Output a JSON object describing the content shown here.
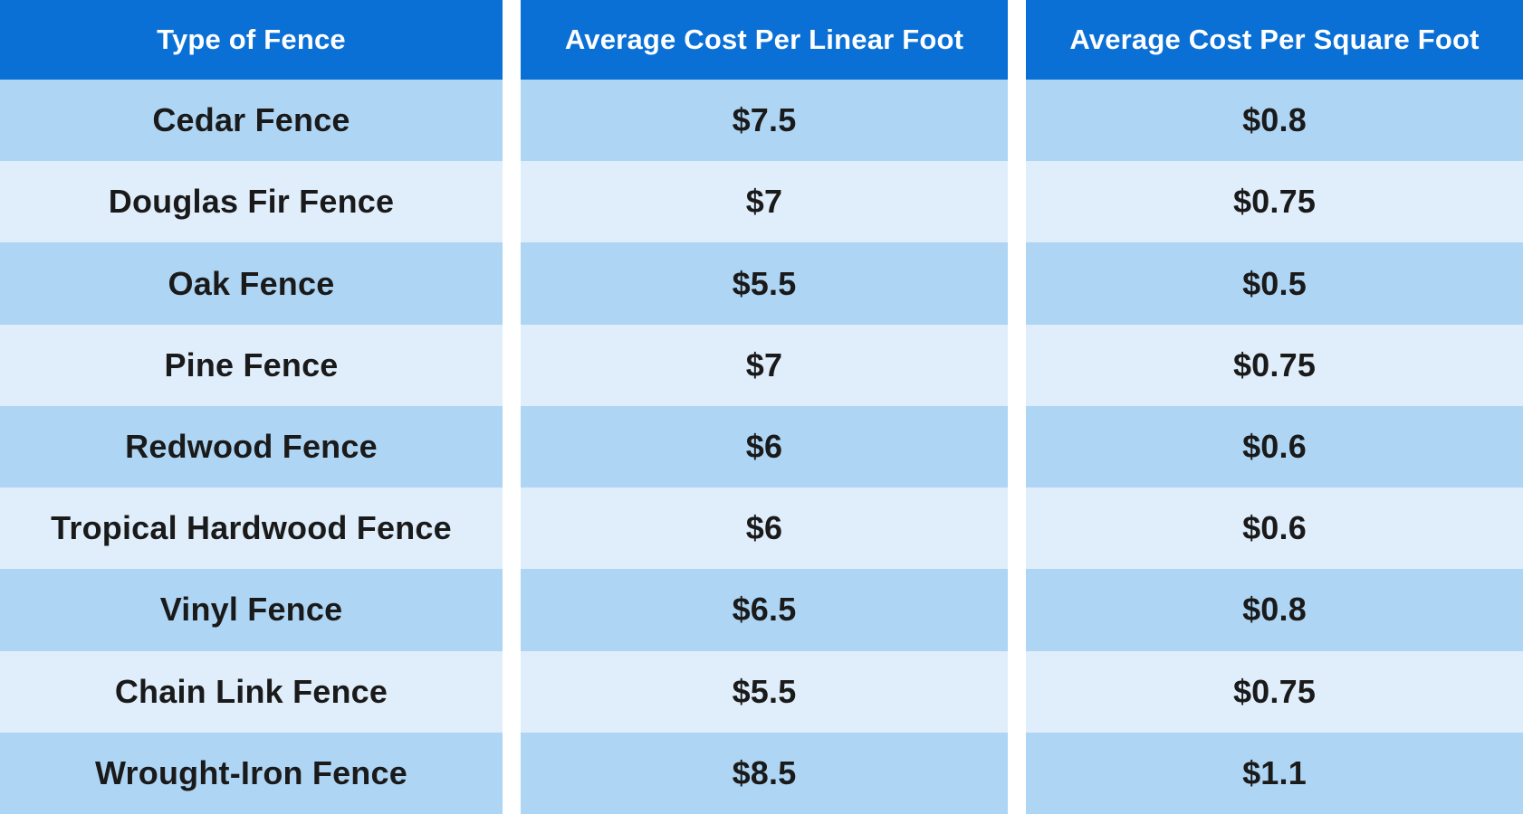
{
  "chart_data": {
    "type": "table",
    "columns": [
      "Type of Fence",
      "Average Cost Per Linear Foot",
      "Average Cost Per Square Foot"
    ],
    "rows": [
      [
        "Cedar Fence",
        "$7.5",
        "$0.8"
      ],
      [
        "Douglas Fir Fence",
        "$7",
        "$0.75"
      ],
      [
        "Oak Fence",
        "$5.5",
        "$0.5"
      ],
      [
        "Pine Fence",
        "$7",
        "$0.75"
      ],
      [
        "Redwood Fence",
        "$6",
        "$0.6"
      ],
      [
        "Tropical Hardwood Fence",
        "$6",
        "$0.6"
      ],
      [
        "Vinyl Fence",
        "$6.5",
        "$0.8"
      ],
      [
        "Chain Link Fence",
        "$5.5",
        "$0.75"
      ],
      [
        "Wrought-Iron Fence",
        "$8.5",
        "$1.1"
      ]
    ],
    "series": [
      {
        "name": "Average Cost Per Linear Foot",
        "values": [
          7.5,
          7,
          5.5,
          7,
          6,
          6,
          6.5,
          5.5,
          8.5
        ]
      },
      {
        "name": "Average Cost Per Square Foot",
        "values": [
          0.8,
          0.75,
          0.5,
          0.75,
          0.6,
          0.6,
          0.8,
          0.75,
          1.1
        ]
      }
    ],
    "categories": [
      "Cedar Fence",
      "Douglas Fir Fence",
      "Oak Fence",
      "Pine Fence",
      "Redwood Fence",
      "Tropical Hardwood Fence",
      "Vinyl Fence",
      "Chain Link Fence",
      "Wrought-Iron Fence"
    ]
  },
  "colors": {
    "header_bg": "#0a70d6",
    "row_dark_bg": "#aed5f4",
    "row_light_bg": "#e0eefb",
    "header_text": "#ffffff",
    "body_text": "#1a1a1a",
    "gap_bg": "#ffffff"
  }
}
